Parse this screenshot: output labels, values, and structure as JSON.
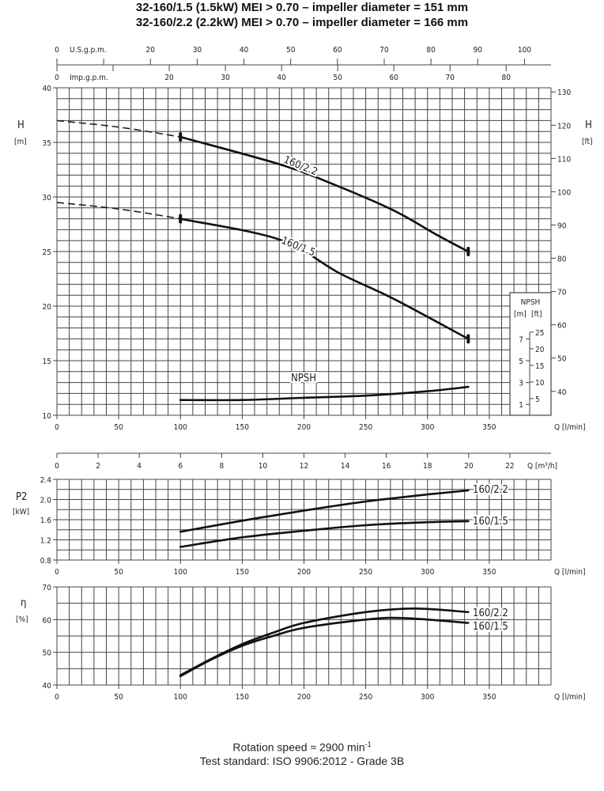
{
  "title_lines": [
    "32-160/1.5 (1.5kW) MEI > 0.70 – impeller diameter = 151 mm",
    "32-160/2.2 (2.2kW) MEI > 0.70  – impeller diameter = 166 mm"
  ],
  "footer": {
    "rotation_prefix": "Rotation speed ≈ 2900 min",
    "rotation_sup": "-1",
    "standard": "Test standard: ISO 9906:2012 - Grade 3B"
  },
  "colors": {
    "curve": "#111111",
    "grid": "#444444"
  },
  "chart_data": [
    {
      "id": "head",
      "type": "line",
      "xlabel": "Q [l/min]",
      "ylabel": "H",
      "ylabel_unit": "[m]",
      "ylabel_right": "H",
      "ylabel_right_unit": "[ft]",
      "xlim": [
        0,
        400
      ],
      "ylim": [
        10,
        40
      ],
      "grid": true,
      "x_ticks": [
        "0",
        "50",
        "100",
        "150",
        "200",
        "250",
        "300",
        "350"
      ],
      "y_ticks": [
        "10",
        "15",
        "20",
        "25",
        "30",
        "35",
        "40"
      ],
      "y_right_ticks": [
        "40",
        "50",
        "60",
        "70",
        "80",
        "90",
        "100",
        "110",
        "120",
        "130"
      ],
      "top_axes": {
        "us_label": "U.S.g.p.m.",
        "us_ticks": [
          "0",
          "20",
          "30",
          "40",
          "50",
          "60",
          "70",
          "80",
          "90",
          "100"
        ],
        "imp_label": "Imp.g.p.m.",
        "imp_ticks": [
          "0",
          "20",
          "30",
          "40",
          "50",
          "60",
          "70",
          "80"
        ]
      },
      "series": [
        {
          "name": "160/2.2",
          "x": [
            100,
            180,
            223,
            272,
            308,
            333
          ],
          "y": [
            35.5,
            33.0,
            31.2,
            28.8,
            26.5,
            25.0
          ],
          "extrapolated": {
            "x": [
              0,
              50,
              100
            ],
            "y": [
              37.0,
              36.4,
              35.5
            ]
          }
        },
        {
          "name": "160/1.5",
          "x": [
            100,
            180,
            229,
            272,
            333
          ],
          "y": [
            28.0,
            26.1,
            23.0,
            20.7,
            17.0
          ],
          "extrapolated": {
            "x": [
              0,
              50,
              100
            ],
            "y": [
              29.5,
              28.9,
              28.0
            ]
          }
        },
        {
          "name": "NPSH",
          "x": [
            100,
            150,
            200,
            250,
            300,
            333
          ],
          "y_npsh_m": [
            1.4,
            1.4,
            1.6,
            1.8,
            2.2,
            2.6
          ]
        }
      ],
      "npsh_inset": {
        "title": "NPSH",
        "unit_m": "[m]",
        "unit_ft": "[ft]",
        "m_ticks": [
          "1",
          "3",
          "5",
          "7"
        ],
        "ft_ticks": [
          "5",
          "10",
          "15",
          "20",
          "25"
        ]
      }
    },
    {
      "id": "power",
      "type": "line",
      "xlabel": "Q [l/min]",
      "top_xlabel": "Q [m³/h]",
      "top_x_ticks": [
        "0",
        "2",
        "4",
        "6",
        "8",
        "10",
        "12",
        "14",
        "16",
        "18",
        "20",
        "22"
      ],
      "ylabel": "P2",
      "ylabel_unit": "[kW]",
      "xlim": [
        0,
        400
      ],
      "ylim": [
        0.8,
        2.4
      ],
      "grid": true,
      "x_ticks": [
        "0",
        "50",
        "100",
        "150",
        "200",
        "250",
        "300",
        "350"
      ],
      "y_ticks": [
        "0.8",
        "1.2",
        "1.6",
        "2.0",
        "2.4"
      ],
      "series": [
        {
          "name": "160/2.2",
          "x": [
            100,
            150,
            200,
            250,
            300,
            333
          ],
          "y": [
            1.36,
            1.58,
            1.78,
            1.96,
            2.1,
            2.18
          ]
        },
        {
          "name": "160/1.5",
          "x": [
            100,
            150,
            200,
            250,
            300,
            333
          ],
          "y": [
            1.06,
            1.25,
            1.38,
            1.49,
            1.55,
            1.57
          ]
        }
      ]
    },
    {
      "id": "efficiency",
      "type": "line",
      "xlabel": "Q [l/min]",
      "ylabel": "η",
      "ylabel_unit": "[%]",
      "xlim": [
        0,
        400
      ],
      "ylim": [
        40,
        70
      ],
      "grid": true,
      "x_ticks": [
        "0",
        "50",
        "100",
        "150",
        "200",
        "250",
        "300",
        "350"
      ],
      "y_ticks": [
        "40",
        "50",
        "60",
        "70"
      ],
      "series": [
        {
          "name": "160/2.2",
          "x": [
            100,
            125,
            150,
            175,
            200,
            250,
            290,
            333
          ],
          "y": [
            43,
            48,
            52.5,
            56,
            59,
            62.3,
            63.4,
            62.3
          ]
        },
        {
          "name": "160/1.5",
          "x": [
            100,
            125,
            150,
            175,
            200,
            250,
            280,
            333
          ],
          "y": [
            42.7,
            47.8,
            52,
            55,
            57.5,
            60,
            60.5,
            59
          ]
        }
      ]
    }
  ]
}
